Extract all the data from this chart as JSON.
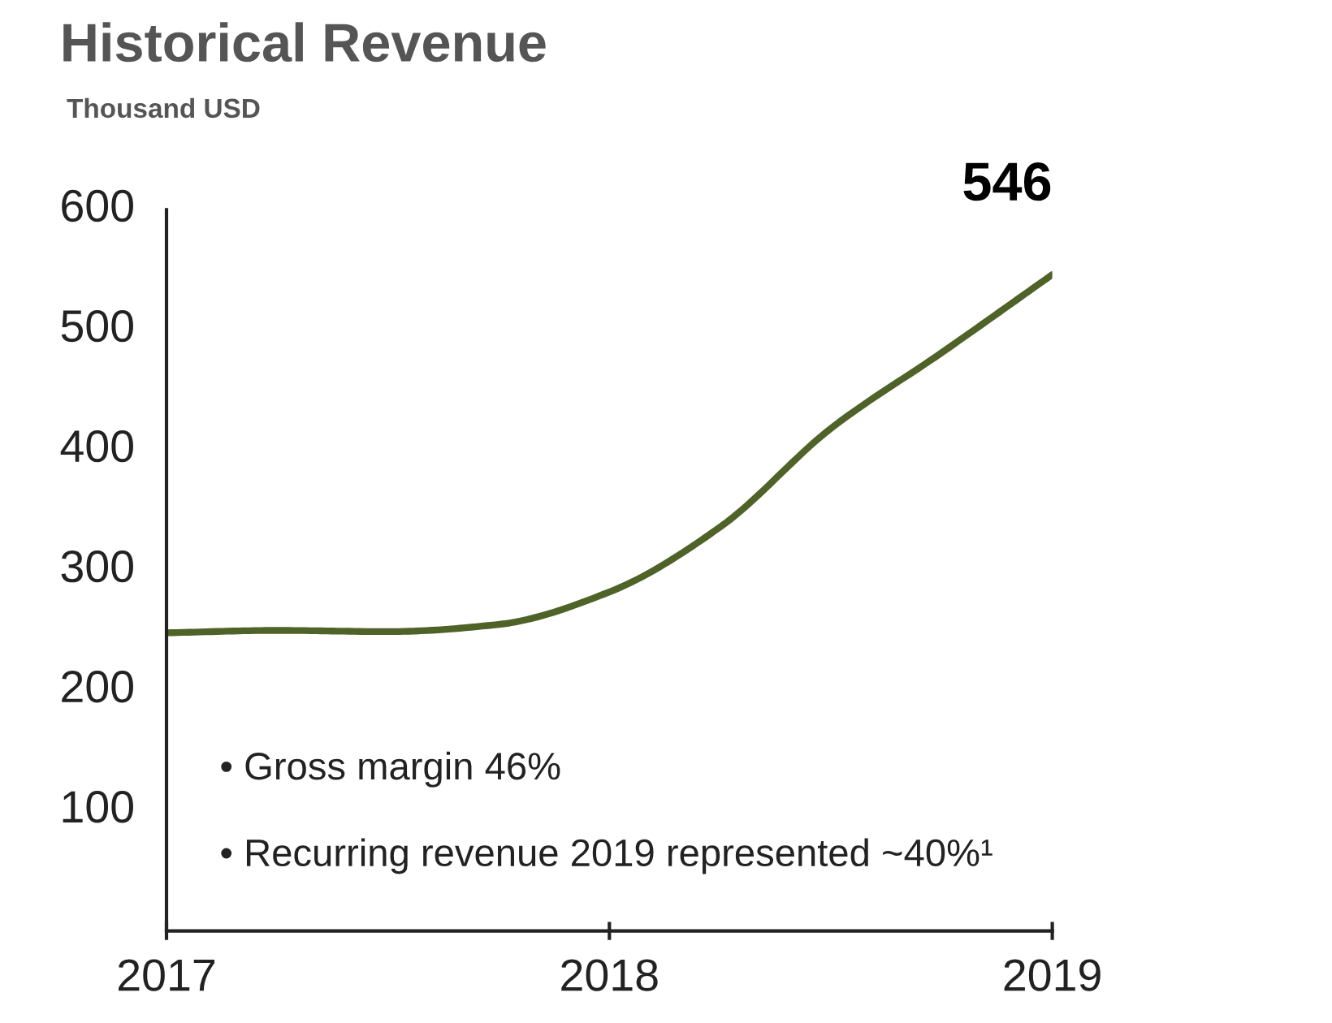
{
  "chart_data": {
    "type": "line",
    "title": "Historical Revenue",
    "subtitle": "Thousand USD",
    "x": [
      2017,
      2017.25,
      2017.5,
      2017.75,
      2018,
      2018.25,
      2018.5,
      2018.75,
      2019
    ],
    "series": [
      {
        "color": "#4f6228",
        "values": [
          248,
          250,
          249,
          255,
          282,
          336,
          418,
          481,
          546
        ]
      }
    ],
    "xlim": [
      2017,
      2019
    ],
    "xticks": [
      2017,
      2018,
      2019
    ],
    "ylim": [
      0,
      600
    ],
    "yticks": [
      100,
      200,
      300,
      400,
      500,
      600
    ],
    "grid": false,
    "legend": false,
    "marker": "none",
    "line_style": "solid",
    "annotations": [
      {
        "text": "546",
        "x": 2019,
        "y": 546
      },
      "• Gross margin 46%",
      "• Recurring revenue 2019 represented ~40%¹"
    ]
  }
}
